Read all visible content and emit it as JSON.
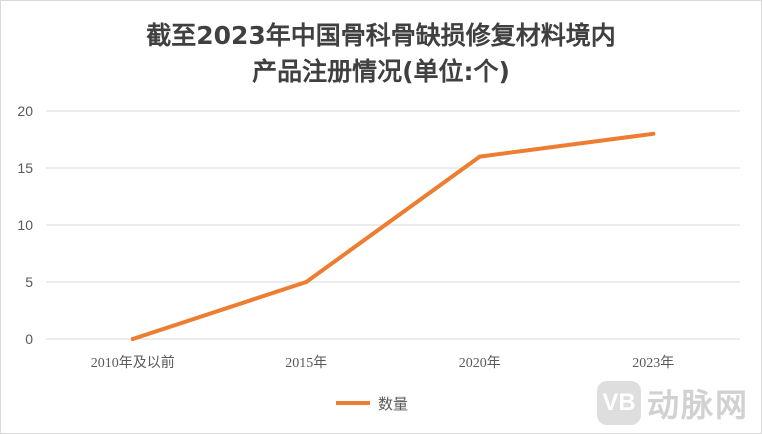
{
  "chart_data": {
    "type": "line",
    "title_line1": "截至2023年中国骨科骨缺损修复材料境内",
    "title_line2": "产品注册情况(单位:个)",
    "categories": [
      "2010年及以前",
      "2015年",
      "2020年",
      "2023年"
    ],
    "series": [
      {
        "name": "数量",
        "values": [
          0,
          5,
          16,
          18
        ],
        "color": "#ED7D31"
      }
    ],
    "ylim": [
      0,
      20
    ],
    "yticks": [
      0,
      5,
      10,
      15,
      20
    ],
    "grid": true,
    "legend_position": "bottom"
  },
  "watermark": {
    "logo_text": "VB",
    "text": "动脉网"
  }
}
